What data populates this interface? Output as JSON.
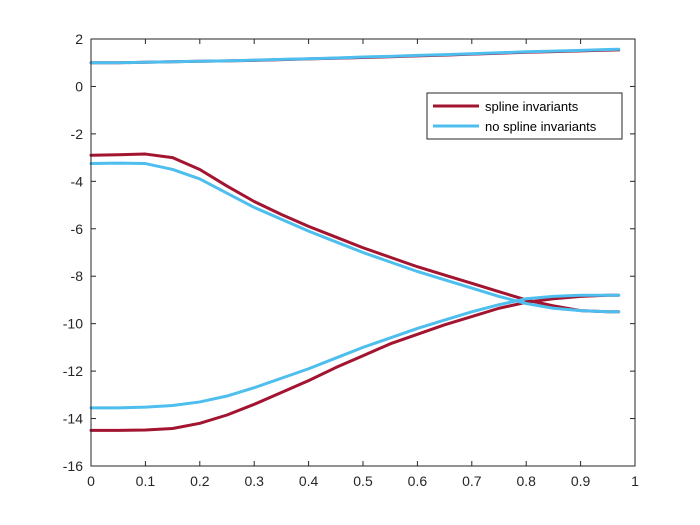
{
  "chart_data": {
    "type": "line",
    "xlim": [
      0,
      1
    ],
    "ylim": [
      -16,
      2
    ],
    "xticks": [
      0,
      0.1,
      0.2,
      0.3,
      0.4,
      0.5,
      0.6,
      0.7,
      0.8,
      0.9,
      1
    ],
    "xtick_labels": [
      "0",
      "0.1",
      "0.2",
      "0.3",
      "0.4",
      "0.5",
      "0.6",
      "0.7",
      "0.8",
      "0.9",
      "1"
    ],
    "yticks": [
      -16,
      -14,
      -12,
      -10,
      -8,
      -6,
      -4,
      -2,
      0,
      2
    ],
    "ytick_labels": [
      "-16",
      "-14",
      "-12",
      "-10",
      "-8",
      "-6",
      "-4",
      "-2",
      "0",
      "2"
    ],
    "grid": false,
    "legend_position": "top-right",
    "x": [
      0,
      0.05,
      0.1,
      0.15,
      0.2,
      0.25,
      0.3,
      0.35,
      0.4,
      0.45,
      0.5,
      0.55,
      0.6,
      0.65,
      0.7,
      0.75,
      0.8,
      0.85,
      0.9,
      0.95,
      0.97
    ],
    "series": [
      {
        "name": "spline invariants",
        "color": "#a2142f",
        "branches": [
          [
            1.0,
            1.0,
            1.02,
            1.04,
            1.06,
            1.08,
            1.1,
            1.13,
            1.16,
            1.19,
            1.22,
            1.25,
            1.29,
            1.32,
            1.36,
            1.4,
            1.44,
            1.47,
            1.5,
            1.53,
            1.54
          ],
          [
            -2.9,
            -2.88,
            -2.85,
            -3.0,
            -3.5,
            -4.2,
            -4.85,
            -5.4,
            -5.9,
            -6.35,
            -6.8,
            -7.2,
            -7.6,
            -7.95,
            -8.3,
            -8.65,
            -9.0,
            -9.25,
            -9.45,
            -9.5,
            -9.5
          ],
          [
            -14.5,
            -14.5,
            -14.48,
            -14.42,
            -14.2,
            -13.85,
            -13.4,
            -12.9,
            -12.4,
            -11.85,
            -11.35,
            -10.85,
            -10.45,
            -10.05,
            -9.7,
            -9.35,
            -9.1,
            -8.95,
            -8.85,
            -8.8,
            -8.8
          ]
        ]
      },
      {
        "name": "no spline invariants",
        "color": "#4dbeee",
        "branches": [
          [
            1.0,
            1.0,
            1.02,
            1.04,
            1.06,
            1.08,
            1.11,
            1.14,
            1.17,
            1.2,
            1.24,
            1.27,
            1.31,
            1.34,
            1.38,
            1.42,
            1.46,
            1.49,
            1.52,
            1.56,
            1.57
          ],
          [
            -3.25,
            -3.23,
            -3.25,
            -3.5,
            -3.9,
            -4.5,
            -5.1,
            -5.6,
            -6.1,
            -6.55,
            -7.0,
            -7.4,
            -7.8,
            -8.15,
            -8.5,
            -8.85,
            -9.15,
            -9.35,
            -9.45,
            -9.5,
            -9.5
          ],
          [
            -13.55,
            -13.55,
            -13.52,
            -13.45,
            -13.3,
            -13.05,
            -12.7,
            -12.3,
            -11.9,
            -11.45,
            -11.0,
            -10.6,
            -10.2,
            -9.85,
            -9.5,
            -9.2,
            -8.95,
            -8.85,
            -8.8,
            -8.8,
            -8.8
          ]
        ]
      }
    ]
  }
}
